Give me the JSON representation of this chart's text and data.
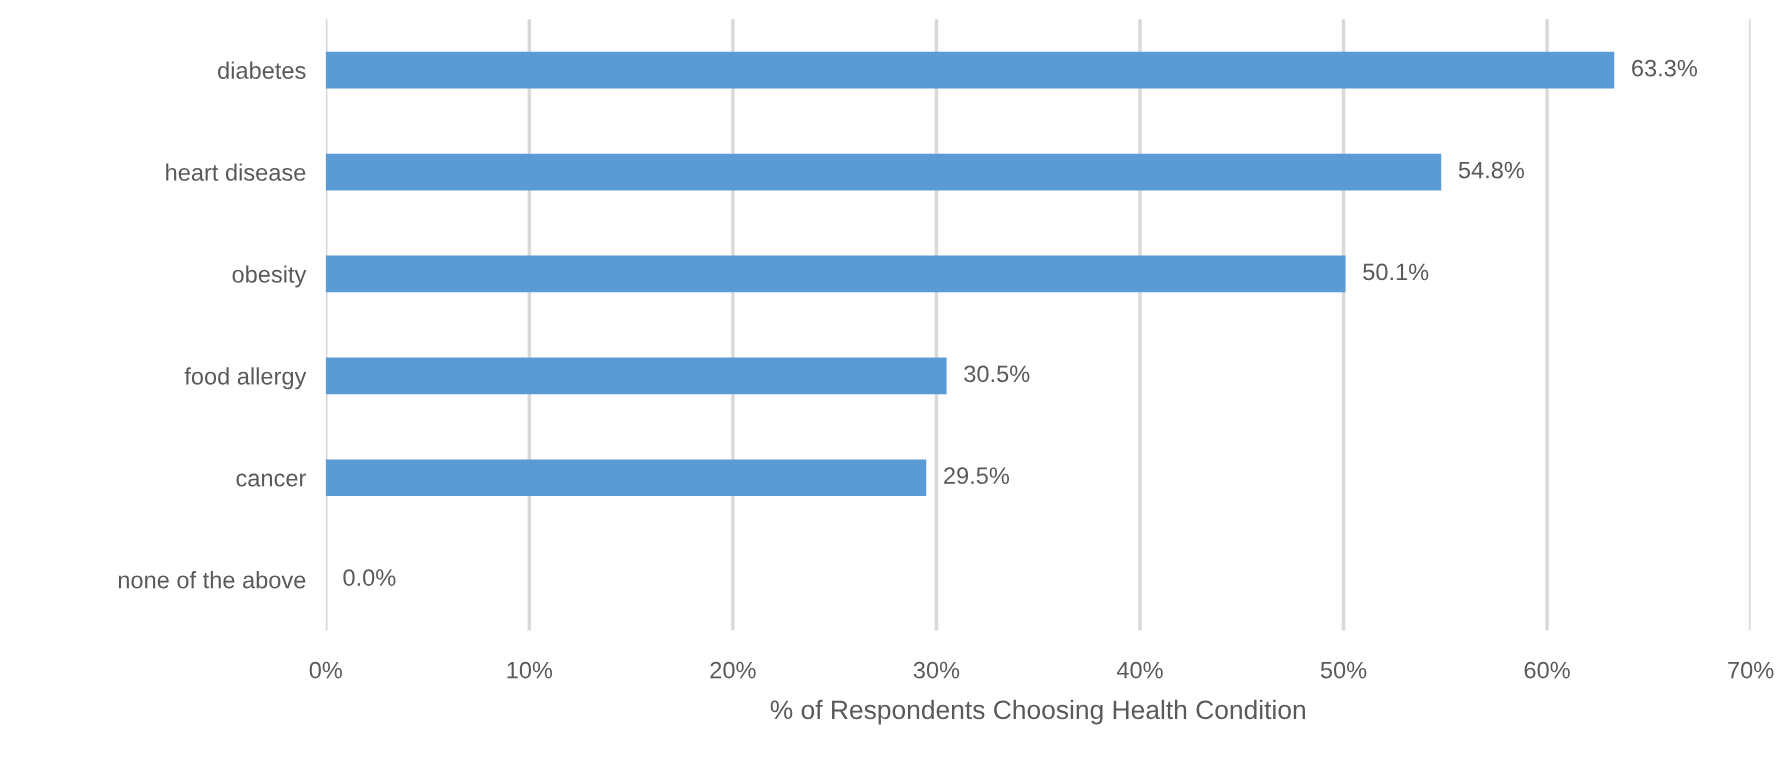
{
  "chart_data": {
    "type": "bar",
    "orientation": "horizontal",
    "xlabel": "% of Respondents Choosing Health Condition",
    "categories": [
      "diabetes",
      "heart disease",
      "obesity",
      "food allergy",
      "cancer",
      "none of the above"
    ],
    "values": [
      63.3,
      54.8,
      50.1,
      30.5,
      29.5,
      0.0
    ],
    "value_labels": [
      "63.3%",
      "54.8%",
      "50.1%",
      "30.5%",
      "29.5%",
      "0.0%"
    ],
    "color": "#5b9bd5",
    "xlim": [
      0,
      70
    ],
    "xticks": [
      {
        "value": 0,
        "label": "0%"
      },
      {
        "value": 10,
        "label": "10%"
      },
      {
        "value": 20,
        "label": "20%"
      },
      {
        "value": 30,
        "label": "30%"
      },
      {
        "value": 40,
        "label": "40%"
      },
      {
        "value": 50,
        "label": "50%"
      },
      {
        "value": 60,
        "label": "60%"
      },
      {
        "value": 70,
        "label": "70%"
      }
    ],
    "grid": "x",
    "legend": false
  }
}
